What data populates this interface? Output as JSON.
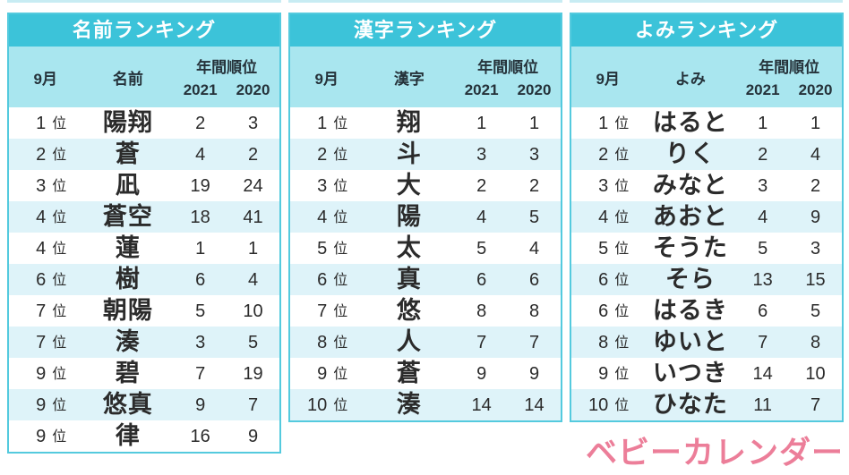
{
  "labels": {
    "rank_suffix": "位"
  },
  "chart_data": [
    {
      "type": "table",
      "title": "名前ランキング",
      "month_label": "9月",
      "value_label": "名前",
      "group_label": "年間順位",
      "year_labels": [
        "2021",
        "2020"
      ],
      "rows": [
        {
          "rank": "1",
          "value": "陽翔",
          "y2021": "2",
          "y2020": "3"
        },
        {
          "rank": "2",
          "value": "蒼",
          "y2021": "4",
          "y2020": "2"
        },
        {
          "rank": "3",
          "value": "凪",
          "y2021": "19",
          "y2020": "24"
        },
        {
          "rank": "4",
          "value": "蒼空",
          "y2021": "18",
          "y2020": "41"
        },
        {
          "rank": "4",
          "value": "蓮",
          "y2021": "1",
          "y2020": "1"
        },
        {
          "rank": "6",
          "value": "樹",
          "y2021": "6",
          "y2020": "4"
        },
        {
          "rank": "7",
          "value": "朝陽",
          "y2021": "5",
          "y2020": "10"
        },
        {
          "rank": "7",
          "value": "湊",
          "y2021": "3",
          "y2020": "5"
        },
        {
          "rank": "9",
          "value": "碧",
          "y2021": "7",
          "y2020": "19"
        },
        {
          "rank": "9",
          "value": "悠真",
          "y2021": "9",
          "y2020": "7"
        },
        {
          "rank": "9",
          "value": "律",
          "y2021": "16",
          "y2020": "9"
        }
      ]
    },
    {
      "type": "table",
      "title": "漢字ランキング",
      "month_label": "9月",
      "value_label": "漢字",
      "group_label": "年間順位",
      "year_labels": [
        "2021",
        "2020"
      ],
      "rows": [
        {
          "rank": "1",
          "value": "翔",
          "y2021": "1",
          "y2020": "1"
        },
        {
          "rank": "2",
          "value": "斗",
          "y2021": "3",
          "y2020": "3"
        },
        {
          "rank": "3",
          "value": "大",
          "y2021": "2",
          "y2020": "2"
        },
        {
          "rank": "4",
          "value": "陽",
          "y2021": "4",
          "y2020": "5"
        },
        {
          "rank": "5",
          "value": "太",
          "y2021": "5",
          "y2020": "4"
        },
        {
          "rank": "6",
          "value": "真",
          "y2021": "6",
          "y2020": "6"
        },
        {
          "rank": "7",
          "value": "悠",
          "y2021": "8",
          "y2020": "8"
        },
        {
          "rank": "8",
          "value": "人",
          "y2021": "7",
          "y2020": "7"
        },
        {
          "rank": "9",
          "value": "蒼",
          "y2021": "9",
          "y2020": "9"
        },
        {
          "rank": "10",
          "value": "湊",
          "y2021": "14",
          "y2020": "14"
        }
      ]
    },
    {
      "type": "table",
      "title": "よみランキング",
      "month_label": "9月",
      "value_label": "よみ",
      "group_label": "年間順位",
      "year_labels": [
        "2021",
        "2020"
      ],
      "rows": [
        {
          "rank": "1",
          "value": "はると",
          "y2021": "1",
          "y2020": "1"
        },
        {
          "rank": "2",
          "value": "りく",
          "y2021": "2",
          "y2020": "4"
        },
        {
          "rank": "3",
          "value": "みなと",
          "y2021": "3",
          "y2020": "2"
        },
        {
          "rank": "4",
          "value": "あおと",
          "y2021": "4",
          "y2020": "9"
        },
        {
          "rank": "5",
          "value": "そうた",
          "y2021": "5",
          "y2020": "3"
        },
        {
          "rank": "6",
          "value": "そら",
          "y2021": "13",
          "y2020": "15"
        },
        {
          "rank": "6",
          "value": "はるき",
          "y2021": "6",
          "y2020": "5"
        },
        {
          "rank": "8",
          "value": "ゆいと",
          "y2021": "7",
          "y2020": "8"
        },
        {
          "rank": "9",
          "value": "いつき",
          "y2021": "14",
          "y2020": "10"
        },
        {
          "rank": "10",
          "value": "ひなた",
          "y2021": "11",
          "y2020": "7"
        }
      ]
    }
  ],
  "logo": {
    "text": "ベビーカレンダー"
  },
  "colors": {
    "title_bg": "#3cc3d9",
    "border": "#54cade",
    "subheader_bg": "#a9e6ef",
    "row_alt": "#def3f9",
    "row": "#ffffff",
    "text": "#2b2b2b",
    "title_text": "#ffffff",
    "logo_pink": "#ec7e99",
    "top_strip": "#c8ecf3"
  }
}
